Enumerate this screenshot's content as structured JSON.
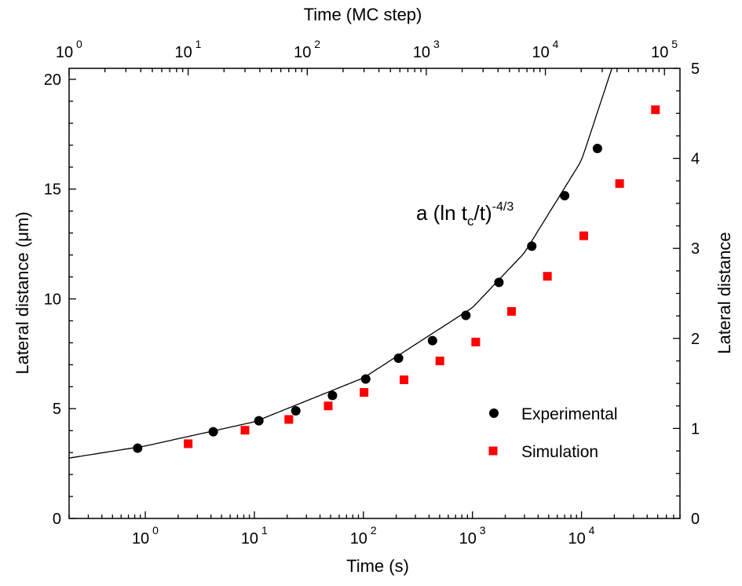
{
  "chart_data": {
    "type": "scatter",
    "xlabel": "Time (s)",
    "x2label": "Time (MC step)",
    "ylabel": "Lateral distance (μm)",
    "y2label": "Lateral distance",
    "xscale": "log",
    "x2scale": "log",
    "xlim": [
      0.2,
      80000
    ],
    "x2lim": [
      1,
      135000
    ],
    "ylim": [
      0,
      20.5
    ],
    "y2lim": [
      0,
      5
    ],
    "grid": false,
    "legend_position": "bottom-right",
    "x_tick_labels": [
      "10",
      "10",
      "10",
      "10",
      "10"
    ],
    "x_tick_exponents": [
      "0",
      "1",
      "2",
      "3",
      "4"
    ],
    "x_tick_values": [
      1,
      10,
      100,
      1000,
      10000
    ],
    "x2_tick_labels": [
      "10",
      "10",
      "10",
      "10",
      "10",
      "10"
    ],
    "x2_tick_exponents": [
      "0",
      "1",
      "2",
      "3",
      "4",
      "5"
    ],
    "x2_tick_values": [
      1,
      10,
      100,
      1000,
      10000,
      100000
    ],
    "y_tick_labels": [
      "0",
      "5",
      "10",
      "15",
      "20"
    ],
    "y_tick_values": [
      0,
      5,
      10,
      15,
      20
    ],
    "y2_tick_labels": [
      "0",
      "1",
      "2",
      "3",
      "4",
      "5"
    ],
    "y2_tick_values": [
      0,
      1,
      2,
      3,
      4,
      5
    ],
    "annotation": {
      "prefix": "a (ln t",
      "subscript": "c",
      "middle": "/t)",
      "superscript": "-4/3"
    },
    "series": [
      {
        "name": "Experimental",
        "marker": "circle",
        "color": "#000000",
        "axis": "primary",
        "x": [
          0.85,
          4.2,
          11,
          24,
          52,
          105,
          210,
          430,
          870,
          1750,
          3500,
          7000,
          14000
        ],
        "y": [
          3.2,
          3.95,
          4.45,
          4.9,
          5.6,
          6.35,
          7.3,
          8.1,
          9.25,
          10.75,
          12.4,
          14.7,
          16.85
        ]
      },
      {
        "name": "Simulation",
        "marker": "square",
        "color": "#ff0000",
        "axis": "secondary",
        "x2": [
          10,
          30,
          70,
          150,
          300,
          650,
          1300,
          2600,
          5200,
          10400,
          21000,
          42000,
          84000
        ],
        "y2": [
          0.83,
          0.98,
          1.1,
          1.25,
          1.4,
          1.54,
          1.75,
          1.96,
          2.3,
          2.69,
          3.14,
          3.72,
          4.54
        ]
      },
      {
        "name": "a (ln tc/t)^-4/3",
        "marker": "line",
        "color": "#000000",
        "axis": "primary",
        "x": [
          0.2,
          1,
          10,
          100,
          1000,
          3000,
          10000,
          19000
        ],
        "y": [
          2.75,
          3.3,
          4.4,
          6.4,
          9.6,
          12.1,
          16.3,
          20.5
        ]
      }
    ],
    "legend": [
      {
        "label": "Experimental",
        "marker": "circle",
        "color": "#000000"
      },
      {
        "label": "Simulation",
        "marker": "square",
        "color": "#ff0000"
      }
    ]
  }
}
